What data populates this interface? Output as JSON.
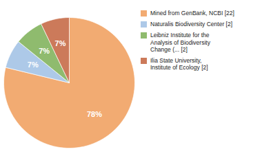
{
  "chart_data": {
    "type": "pie",
    "categories": [
      "Mined from GenBank, NCBI [22]",
      "Naturalis Biodiversity Center [2]",
      "Leibniz Institute for the\nAnalysis of Biodiversity\nChange (... [2]",
      "Ilia State University,\nInstitute of Ecology [2]"
    ],
    "values": [
      78,
      7,
      7,
      7
    ],
    "value_labels": [
      "78%",
      "7%",
      "7%",
      "7%"
    ],
    "colors": [
      "#f2ab72",
      "#adc9e8",
      "#8fbb6e",
      "#cc7a5a"
    ],
    "data_labels": true,
    "legend": "right"
  }
}
